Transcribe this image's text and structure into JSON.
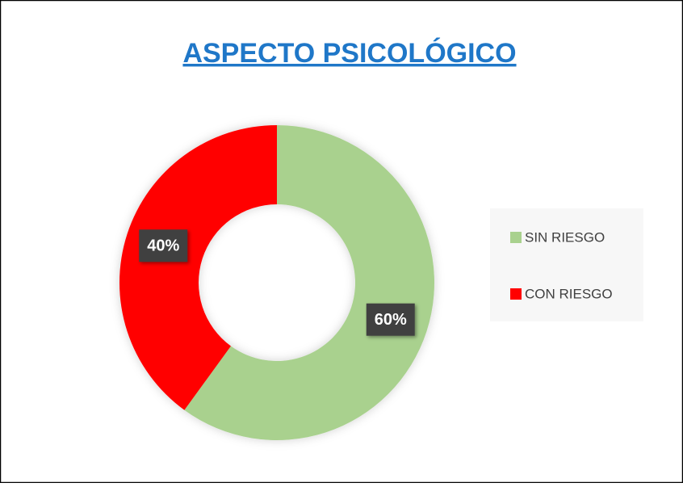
{
  "chart_data": {
    "type": "donut",
    "title": "ASPECTO PSICOLÓGICO",
    "categories": [
      "SIN RIESGO",
      "CON RIESGO"
    ],
    "values": [
      60,
      40
    ],
    "value_labels": [
      "60%",
      "40%"
    ],
    "colors": [
      "#a9d18e",
      "#ff0000"
    ],
    "legend": "right"
  }
}
